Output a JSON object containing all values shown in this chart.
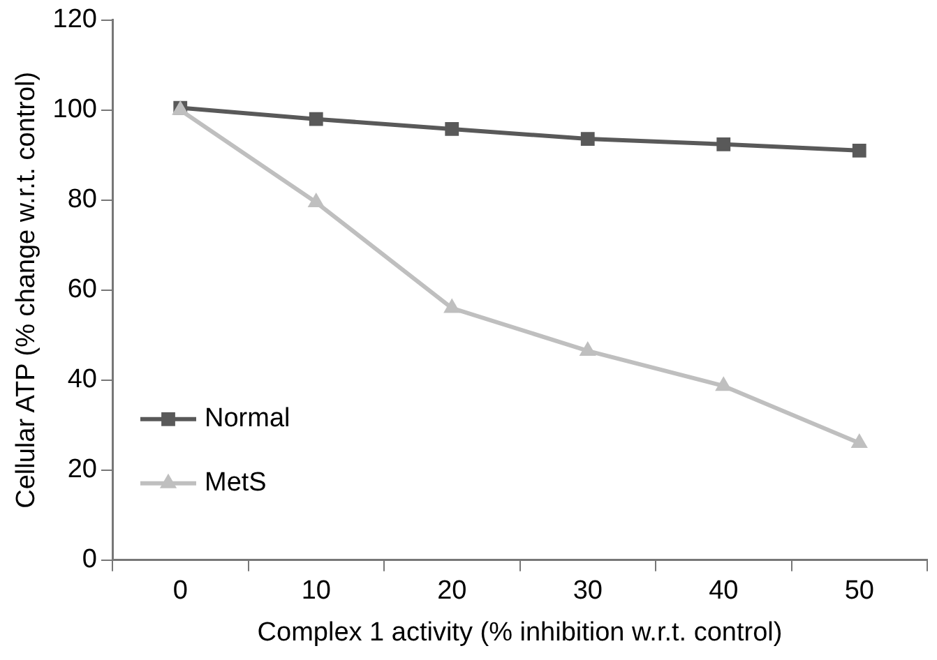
{
  "chart_data": {
    "type": "line",
    "xlabel": "Complex 1 activity (% inhibition w.r.t. control)",
    "ylabel": "Cellular ATP (% change w.r.t. control)",
    "categories": [
      "0",
      "10",
      "20",
      "30",
      "40",
      "50"
    ],
    "series": [
      {
        "name": "Normal",
        "color": "#595959",
        "marker": "square",
        "values": [
          100.5,
          98,
          95.8,
          93.6,
          92.4,
          91
        ]
      },
      {
        "name": "MetS",
        "color": "#bfbfbf",
        "marker": "triangle",
        "values": [
          100,
          79.5,
          56,
          46.5,
          38.7,
          26
        ]
      }
    ],
    "ylim": [
      0,
      120
    ],
    "yticks": [
      0,
      20,
      40,
      60,
      80,
      100,
      120
    ],
    "grid": false,
    "legend": "bottom left"
  }
}
